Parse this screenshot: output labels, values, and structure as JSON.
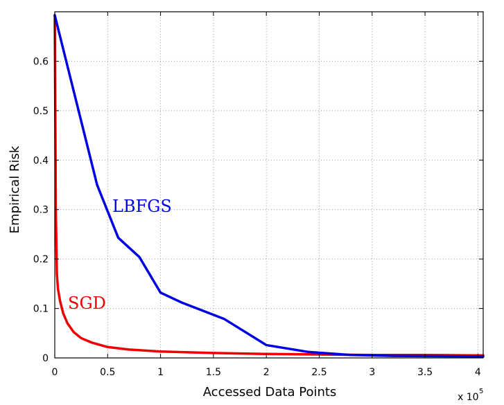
{
  "chart_data": {
    "type": "line",
    "xlabel": "Accessed Data Points",
    "ylabel": "Empirical Risk",
    "x_multiplier_label": "x 10",
    "x_multiplier_exponent": "5",
    "xlim": [
      0,
      4.05
    ],
    "ylim": [
      0,
      0.7
    ],
    "xticks": [
      0,
      0.5,
      1,
      1.5,
      2,
      2.5,
      3,
      3.5,
      4
    ],
    "xtick_labels": [
      "0",
      "0.5",
      "1",
      "1.5",
      "2",
      "2.5",
      "3",
      "3.5",
      "4"
    ],
    "yticks": [
      0,
      0.1,
      0.2,
      0.3,
      0.4,
      0.5,
      0.6
    ],
    "ytick_labels": [
      "0",
      "0.1",
      "0.2",
      "0.3",
      "0.4",
      "0.5",
      "0.6"
    ],
    "grid": true,
    "series": [
      {
        "name": "LBFGS",
        "color": "#0000e0",
        "x": [
          0,
          0.4,
          0.6,
          0.8,
          1.0,
          1.2,
          1.6,
          2.0,
          2.4,
          2.8,
          3.2,
          4.05
        ],
        "y": [
          0.693,
          0.35,
          0.243,
          0.204,
          0.132,
          0.112,
          0.079,
          0.026,
          0.012,
          0.006,
          0.004,
          0.003
        ]
      },
      {
        "name": "SGD",
        "color": "#ee0000",
        "x": [
          0,
          0.005,
          0.01,
          0.02,
          0.03,
          0.05,
          0.08,
          0.12,
          0.18,
          0.25,
          0.35,
          0.5,
          0.7,
          1.0,
          1.5,
          2.0,
          2.5,
          3.0,
          3.5,
          4.05
        ],
        "y": [
          0.693,
          0.5,
          0.3,
          0.17,
          0.14,
          0.115,
          0.09,
          0.07,
          0.052,
          0.04,
          0.031,
          0.022,
          0.017,
          0.013,
          0.01,
          0.008,
          0.007,
          0.006,
          0.006,
          0.005
        ]
      }
    ]
  }
}
